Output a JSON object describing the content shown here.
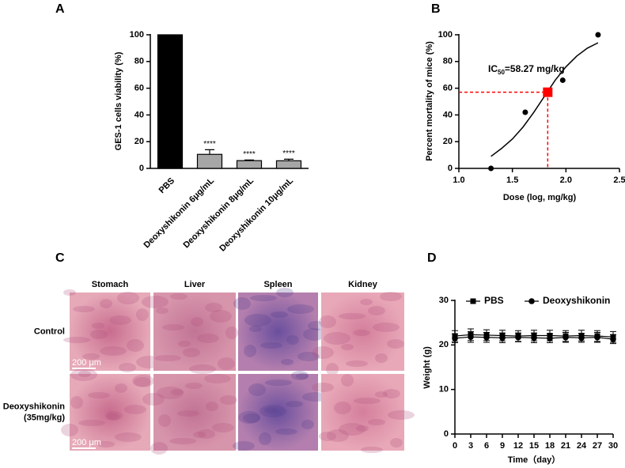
{
  "chart_data": [
    {
      "type": "bar",
      "panel_label": "A",
      "ylabel": "GES-1 cells viability (%)",
      "categories": [
        "PBS",
        "Deoxyshikonin 6μg/mL",
        "Deoxyshikonin 8μg/mL",
        "Deoxyshikonin 10μg/mL"
      ],
      "values": [
        100,
        10.5,
        5.8,
        5.7
      ],
      "errors": [
        0,
        3.5,
        0.5,
        1.2
      ],
      "significance": [
        null,
        "****",
        "****",
        "****"
      ],
      "colors": [
        "#000000",
        "#a6a6a6",
        "#a6a6a6",
        "#a6a6a6"
      ],
      "ylim": [
        0,
        100
      ],
      "yticks": [
        0,
        20,
        40,
        60,
        80,
        100
      ]
    },
    {
      "type": "scatter",
      "panel_label": "B",
      "ylabel": "Percent mortality of mice (%)",
      "xlabel": "Dose (log, mg/kg)",
      "x": [
        1.3,
        1.62,
        1.97,
        2.3
      ],
      "values": [
        0,
        42,
        66,
        100
      ],
      "color": "#000000",
      "fit": {
        "x": [
          1.3,
          1.4,
          1.5,
          1.6,
          1.7,
          1.8,
          1.9,
          2.0,
          2.1,
          2.2,
          2.3
        ],
        "y": [
          9,
          15,
          22,
          31,
          42,
          54,
          66,
          76,
          84,
          90,
          94
        ]
      },
      "ic50": {
        "x": 1.83,
        "y": 57,
        "color": "#ff0000",
        "text": "IC",
        "sub": "50",
        "rest": "=58.27 mg/kg"
      },
      "xlim": [
        1.0,
        2.5
      ],
      "xticks": [
        {
          "value": 1.0,
          "label": "1.0"
        },
        1.5,
        {
          "value": 2.0,
          "label": "2.0"
        },
        2.5
      ],
      "ylim": [
        0,
        100
      ],
      "yticks": [
        0,
        20,
        40,
        60,
        80,
        100
      ]
    },
    {
      "type": "line",
      "panel_label": "D",
      "ylabel": "Weight (g)",
      "xlabel": "Time（day）",
      "x": [
        0,
        3,
        6,
        9,
        12,
        15,
        18,
        21,
        24,
        27,
        30
      ],
      "series": [
        {
          "name": "PBS",
          "color": "#000000",
          "marker": "square",
          "values": [
            22,
            22.3,
            22.2,
            22.1,
            22,
            22.1,
            22.1,
            22,
            22.1,
            22,
            21.8
          ],
          "errors": [
            1.2,
            1.3,
            1.2,
            1.2,
            1.2,
            1.2,
            1.2,
            1.2,
            1.2,
            1.2,
            1.2
          ]
        },
        {
          "name": "Deoxyshikonin",
          "color": "#000000",
          "marker": "circle",
          "values": [
            21.5,
            21.8,
            21.7,
            21.6,
            21.7,
            21.6,
            21.5,
            21.7,
            21.6,
            21.7,
            21.3
          ],
          "errors": [
            1.0,
            1.2,
            1.1,
            1.1,
            1.0,
            1.1,
            1.0,
            1.1,
            1.0,
            1.1,
            1.0
          ]
        }
      ],
      "xlim": [
        0,
        30
      ],
      "xticks": [
        0,
        3,
        6,
        9,
        12,
        15,
        18,
        21,
        24,
        27,
        30
      ],
      "ylim": [
        0,
        30
      ],
      "yticks": [
        0,
        10,
        20,
        30
      ]
    }
  ],
  "histology": {
    "panel_label": "C",
    "columns": [
      "Stomach",
      "Liver",
      "Spleen",
      "Kidney"
    ],
    "rows": [
      [
        "Control"
      ],
      [
        "Deoxyshikonin",
        "(35mg/kg)"
      ]
    ],
    "scale_bar": "200 μm"
  }
}
